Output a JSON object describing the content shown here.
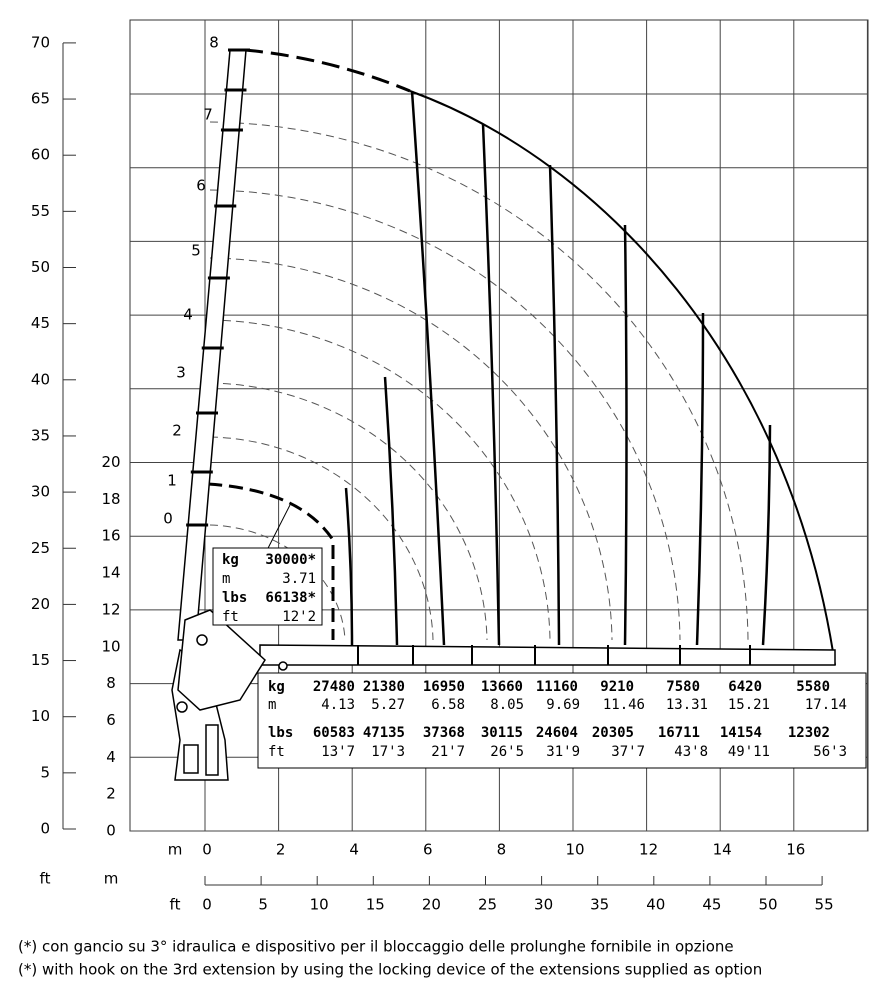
{
  "axes": {
    "left_ft_ticks": [
      0,
      5,
      10,
      15,
      20,
      25,
      30,
      35,
      40,
      45,
      50,
      55,
      60,
      65,
      70
    ],
    "left_m_ticks": [
      0,
      2,
      4,
      6,
      8,
      10,
      12,
      14,
      16,
      18,
      20
    ],
    "bottom_m_ticks": [
      0,
      2,
      4,
      6,
      8,
      10,
      12,
      14,
      16
    ],
    "bottom_ft_ticks": [
      0,
      5,
      10,
      15,
      20,
      25,
      30,
      35,
      40,
      45,
      50,
      55
    ],
    "bottom_m_label": "m",
    "bottom_ft_label": "ft",
    "corner_ft_label": "ft",
    "corner_m_label": "m"
  },
  "boom_positions": [
    0,
    1,
    2,
    3,
    4,
    5,
    6,
    7,
    8
  ],
  "callout": {
    "rows": [
      [
        "kg",
        "30000*"
      ],
      [
        "m",
        3.71
      ],
      [
        "lbs",
        "66138*"
      ],
      [
        "ft",
        "12'2"
      ]
    ]
  },
  "load_table": {
    "rows": [
      {
        "label": "kg",
        "values": [
          27480,
          21380,
          16950,
          13660,
          11160,
          9210,
          7580,
          6420,
          5580
        ]
      },
      {
        "label": "m",
        "values": [
          4.13,
          5.27,
          6.58,
          8.05,
          9.69,
          11.46,
          13.31,
          15.21,
          17.14
        ]
      },
      {
        "label": "lbs",
        "values": [
          60583,
          47135,
          37368,
          30115,
          24604,
          20305,
          16711,
          14154,
          12302
        ]
      },
      {
        "label": "ft",
        "values": [
          "13'7",
          "17'3",
          "21'7",
          "26'5",
          "31'9",
          "37'7",
          "43'8",
          "49'11",
          "56'3"
        ]
      }
    ]
  },
  "footnotes": [
    "(*) con gancio su 3° idraulica e dispositivo per il bloccaggio delle prolunghe fornibile in opzione",
    "(*) with hook on the 3rd extension by using the locking device of the extensions supplied as option"
  ]
}
